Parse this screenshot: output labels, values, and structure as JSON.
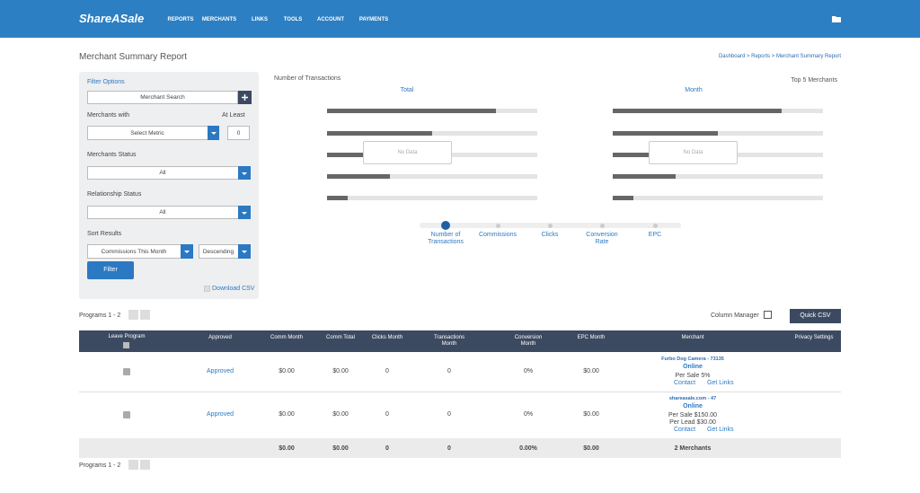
{
  "header": {
    "logo": "ShareASale",
    "nav": [
      "REPORTS",
      "MERCHANTS",
      "LINKS",
      "TOOLS",
      "ACCOUNT",
      "PAYMENTS"
    ]
  },
  "page": {
    "title": "Merchant Summary Report",
    "breadcrumb": "Dashboard > Reports > Merchant Summary Report"
  },
  "filter": {
    "title": "Filter Options",
    "merchant_search": "Merchant Search",
    "merchants_with": "Merchants with",
    "at_least": "At Least",
    "metric": "Select Metric",
    "at_least_value": "0",
    "merchants_status": "Merchants Status",
    "merchants_status_value": "All",
    "relationship_status": "Relationship Status",
    "relationship_status_value": "All",
    "sort_results": "Sort Results",
    "sort_by": "Commissions This Month",
    "sort_order": "Descending",
    "button": "Filter",
    "download": "Download CSV"
  },
  "chart": {
    "title": "Number of Transactions",
    "total": "Total",
    "month": "Month",
    "top": "Top 5 Merchants",
    "empty": [
      "No Data",
      "No Data"
    ],
    "steps": [
      "Number of Transactions",
      "Commissions",
      "Clicks",
      "Conversion Rate",
      "EPC"
    ]
  },
  "toolbar": {
    "programs_top": "Programs 1 - 2",
    "column_manager": "Column Manager",
    "quick_csv": "Quick CSV",
    "programs_bottom": "Programs 1 - 2"
  },
  "table": {
    "columns": [
      "Leave Program",
      "Approved",
      "Comm Month",
      "Comm Total",
      "Clicks Month",
      "Transactions Month",
      "Conversion Month",
      "EPC Month",
      "Merchant",
      "Privacy Settings"
    ],
    "rows": [
      {
        "cells": [
          "Approved",
          "$0.00",
          "$0.00",
          "0",
          "0",
          "0%",
          "$0.00"
        ],
        "merchant": {
          "name": "Furbo Dog Camera - 73135",
          "state": "Online",
          "terms": [
            "Per Sale 5%"
          ],
          "contact": "Contact",
          "links": "Get Links"
        }
      },
      {
        "cells": [
          "Approved",
          "$0.00",
          "$0.00",
          "0",
          "0",
          "0%",
          "$0.00"
        ],
        "merchant": {
          "name": "shareasale.com - 47",
          "state": "Online",
          "terms": [
            "Per Sale $150.00",
            "Per Lead $30.00"
          ],
          "contact": "Contact",
          "links": "Get Links"
        }
      }
    ],
    "totals": [
      "$0.00",
      "$0.00",
      "0",
      "0",
      "0.00%",
      "$0.00",
      "2 Merchants"
    ]
  }
}
